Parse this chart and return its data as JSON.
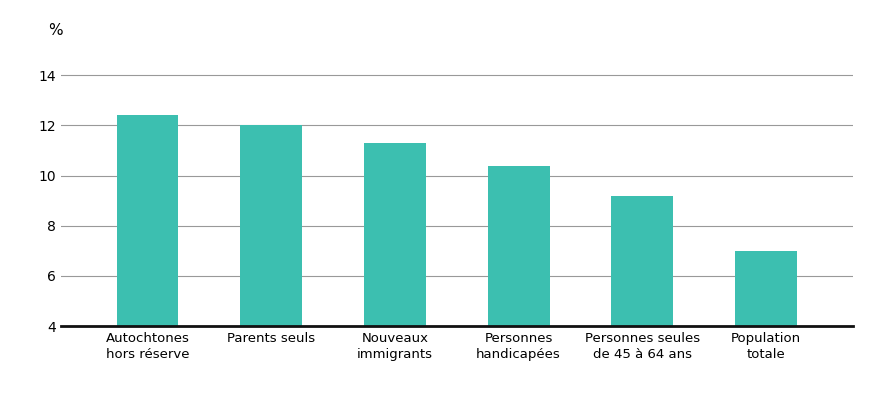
{
  "categories": [
    "Autochtones\nhors réserve",
    "Parents seuls",
    "Nouveaux\nimmigrants",
    "Personnes\nhandicapées",
    "Personnes seules\nde 45 à 64 ans",
    "Population\ntotale"
  ],
  "values": [
    12.4,
    12.0,
    11.3,
    10.4,
    9.2,
    7.0
  ],
  "bar_color": "#3CBFB0",
  "bar_edgecolor": "#3CBFB0",
  "ylim": [
    4,
    15
  ],
  "yticks": [
    4,
    6,
    8,
    10,
    12,
    14
  ],
  "ylabel": "%",
  "grid_color": "#999999",
  "axis_color": "#111111",
  "background_color": "#ffffff",
  "tick_fontsize": 10,
  "label_fontsize": 9.5,
  "ylabel_fontsize": 11,
  "bar_width": 0.5
}
